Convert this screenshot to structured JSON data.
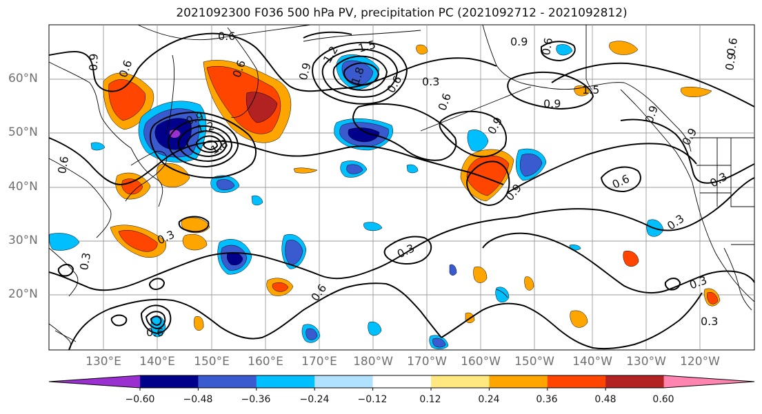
{
  "title": "2021092300 F036 500 hPa PV, precipitation PC (2021092712 - 2021092812)",
  "lat_labels": [
    "60°N",
    "50°N",
    "40°N",
    "30°N",
    "20°N"
  ],
  "lon_labels": [
    "130°E",
    "140°E",
    "150°E",
    "160°E",
    "170°E",
    "180°W",
    "170°W",
    "160°W",
    "150°W",
    "140°W",
    "130°W",
    "120°W"
  ],
  "colorbar": {
    "ticks": [
      "−0.60",
      "−0.48",
      "−0.36",
      "−0.24",
      "−0.12",
      "0.12",
      "0.24",
      "0.36",
      "0.48",
      "0.60"
    ],
    "colors": [
      "#9b30d0",
      "#00008b",
      "#3a5bd0",
      "#00bfff",
      "#b0e2ff",
      "#ffffff",
      "#ffe880",
      "#ffa500",
      "#ff4500",
      "#b22222",
      "#ff85b0"
    ]
  },
  "contour_labels": [
    "0.6",
    "0.9",
    "0.6",
    "1.2",
    "1.5",
    "1.8",
    "0.3",
    "0.6",
    "0.9",
    "1.2",
    "0.9",
    "0.9",
    "0.9",
    "0.6",
    "1.5",
    "1.8",
    "0.6",
    "0.9",
    "0.3",
    "0.6",
    "0.3",
    "0.3",
    "0.3",
    "0.6",
    "0.6",
    "0.3",
    "0.3",
    "0.9",
    "0.6",
    "0.9",
    "0.6",
    "0.9",
    "0.9",
    "0.6",
    "0.3"
  ],
  "colors": {
    "coast": "#000000",
    "grid": "#9a9a9a",
    "contour": "#000000"
  }
}
